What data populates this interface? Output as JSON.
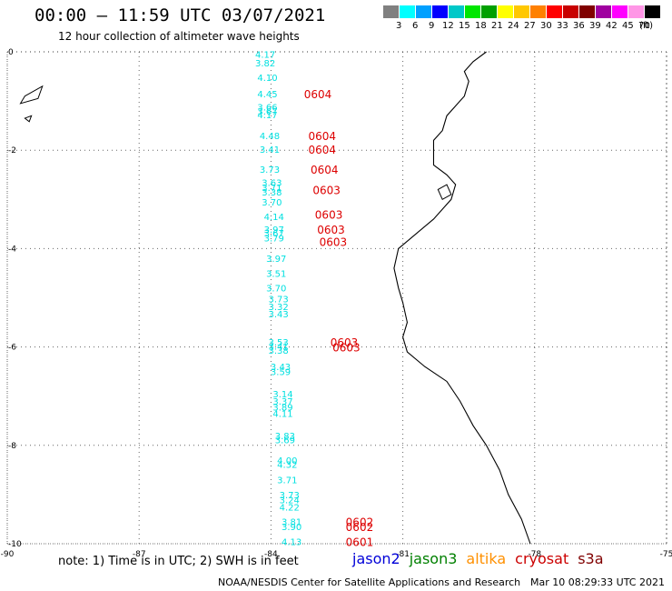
{
  "header": {
    "title": "00:00 – 11:59 UTC 03/07/2021",
    "subtitle": "12 hour collection of altimeter wave heights"
  },
  "colorbar": {
    "unit": "(ft)",
    "labels": [
      "3",
      "6",
      "9",
      "12",
      "15",
      "18",
      "21",
      "24",
      "27",
      "30",
      "33",
      "36",
      "39",
      "42",
      "45",
      "70"
    ],
    "colors": [
      "#808080",
      "#00ffff",
      "#00a0ff",
      "#0000ff",
      "#00c8c8",
      "#00e600",
      "#00a000",
      "#ffff00",
      "#ffc800",
      "#ff8000",
      "#ff0000",
      "#c80000",
      "#800000",
      "#a000a0",
      "#ff00ff",
      "#ff96e6",
      "#000000"
    ]
  },
  "footer": {
    "note": "note:  1) Time is in UTC;  2) SWH is in feet",
    "satellites": [
      {
        "name": "jason2",
        "color": "#0000d8"
      },
      {
        "name": "jason3",
        "color": "#008000"
      },
      {
        "name": "altika",
        "color": "#ff9000"
      },
      {
        "name": "cryosat",
        "color": "#cc0000"
      },
      {
        "name": "s3a",
        "color": "#800000"
      }
    ],
    "credit": "NOAA/NESDIS Center for Satellite Applications and Research",
    "timestamp": "Mar 10 08:29:33 UTC 2021"
  },
  "chart_data": {
    "type": "scatter",
    "x_ticks": [
      "-90",
      "-87",
      "-84",
      "-81",
      "-78",
      "-75"
    ],
    "y_ticks": [
      "0",
      "-2",
      "-4",
      "-6",
      "-8",
      "-10"
    ],
    "xlim": [
      -90,
      -75
    ],
    "ylim": [
      -10,
      0
    ],
    "grid": true,
    "wave_color": "#00e0e0",
    "time_color": "#dd0000",
    "swh_points": [
      {
        "lon": -83.9,
        "lat": -0.05,
        "v": "4.17"
      },
      {
        "lon": -83.9,
        "lat": -0.22,
        "v": "3.82"
      },
      {
        "lon": -83.85,
        "lat": -0.52,
        "v": "4.10"
      },
      {
        "lon": -83.85,
        "lat": -0.85,
        "v": "4.45"
      },
      {
        "lon": -83.85,
        "lat": -1.12,
        "v": "3.66"
      },
      {
        "lon": -83.85,
        "lat": -1.2,
        "v": "3.67"
      },
      {
        "lon": -83.85,
        "lat": -1.28,
        "v": "4.17"
      },
      {
        "lon": -83.8,
        "lat": -1.7,
        "v": "4.48"
      },
      {
        "lon": -83.8,
        "lat": -1.98,
        "v": "3.41"
      },
      {
        "lon": -83.8,
        "lat": -2.38,
        "v": "3.73"
      },
      {
        "lon": -83.75,
        "lat": -2.65,
        "v": "3.63"
      },
      {
        "lon": -83.75,
        "lat": -2.75,
        "v": "3.71"
      },
      {
        "lon": -83.75,
        "lat": -2.85,
        "v": "3.38"
      },
      {
        "lon": -83.75,
        "lat": -3.05,
        "v": "3.70"
      },
      {
        "lon": -83.7,
        "lat": -3.35,
        "v": "4.14"
      },
      {
        "lon": -83.7,
        "lat": -3.6,
        "v": "3.97"
      },
      {
        "lon": -83.7,
        "lat": -3.68,
        "v": "3.67"
      },
      {
        "lon": -83.7,
        "lat": -3.78,
        "v": "3.79"
      },
      {
        "lon": -83.65,
        "lat": -4.2,
        "v": "3.97"
      },
      {
        "lon": -83.65,
        "lat": -4.5,
        "v": "3.51"
      },
      {
        "lon": -83.65,
        "lat": -4.8,
        "v": "3.70"
      },
      {
        "lon": -83.6,
        "lat": -5.02,
        "v": "3.73"
      },
      {
        "lon": -83.6,
        "lat": -5.18,
        "v": "3.32"
      },
      {
        "lon": -83.6,
        "lat": -5.32,
        "v": "3.43"
      },
      {
        "lon": -83.6,
        "lat": -5.9,
        "v": "3.53"
      },
      {
        "lon": -83.6,
        "lat": -5.98,
        "v": "3.41"
      },
      {
        "lon": -83.6,
        "lat": -6.06,
        "v": "3.38"
      },
      {
        "lon": -83.55,
        "lat": -6.4,
        "v": "3.43"
      },
      {
        "lon": -83.55,
        "lat": -6.5,
        "v": "3.59"
      },
      {
        "lon": -83.5,
        "lat": -6.95,
        "v": "3.14"
      },
      {
        "lon": -83.5,
        "lat": -7.1,
        "v": "3.37"
      },
      {
        "lon": -83.5,
        "lat": -7.22,
        "v": "3.89"
      },
      {
        "lon": -83.5,
        "lat": -7.35,
        "v": "4.11"
      },
      {
        "lon": -83.45,
        "lat": -7.8,
        "v": "3.83"
      },
      {
        "lon": -83.45,
        "lat": -7.88,
        "v": "3.69"
      },
      {
        "lon": -83.4,
        "lat": -8.3,
        "v": "4.00"
      },
      {
        "lon": -83.4,
        "lat": -8.38,
        "v": "4.32"
      },
      {
        "lon": -83.4,
        "lat": -8.7,
        "v": "3.71"
      },
      {
        "lon": -83.35,
        "lat": -9.0,
        "v": "3.73"
      },
      {
        "lon": -83.35,
        "lat": -9.1,
        "v": "3.24"
      },
      {
        "lon": -83.35,
        "lat": -9.25,
        "v": "4.22"
      },
      {
        "lon": -83.3,
        "lat": -9.55,
        "v": "3.81"
      },
      {
        "lon": -83.3,
        "lat": -9.65,
        "v": "3.90"
      },
      {
        "lon": -83.3,
        "lat": -9.95,
        "v": "4.13"
      }
    ],
    "time_points": [
      {
        "lon": -83.25,
        "lat": -0.85,
        "v": "0604"
      },
      {
        "lon": -83.15,
        "lat": -1.7,
        "v": "0604"
      },
      {
        "lon": -83.15,
        "lat": -1.98,
        "v": "0604"
      },
      {
        "lon": -83.1,
        "lat": -2.38,
        "v": "0604"
      },
      {
        "lon": -83.05,
        "lat": -2.8,
        "v": "0603"
      },
      {
        "lon": -83.0,
        "lat": -3.3,
        "v": "0603"
      },
      {
        "lon": -82.95,
        "lat": -3.6,
        "v": "0603"
      },
      {
        "lon": -82.9,
        "lat": -3.85,
        "v": "0603"
      },
      {
        "lon": -82.65,
        "lat": -5.9,
        "v": "0603"
      },
      {
        "lon": -82.6,
        "lat": -6.0,
        "v": "0603"
      },
      {
        "lon": -82.3,
        "lat": -9.55,
        "v": "0602"
      },
      {
        "lon": -82.3,
        "lat": -9.65,
        "v": "0602"
      },
      {
        "lon": -82.3,
        "lat": -9.95,
        "v": "0601"
      }
    ]
  }
}
